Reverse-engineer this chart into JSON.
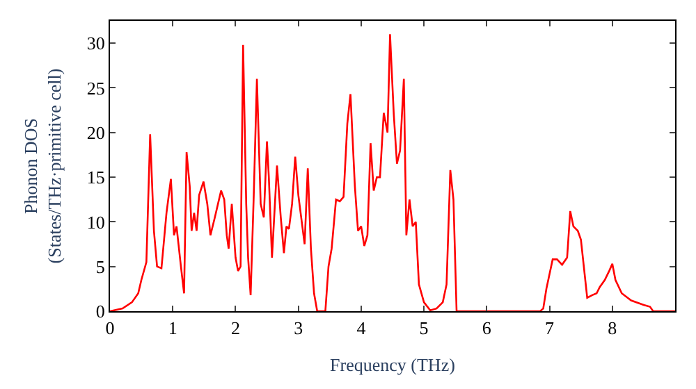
{
  "chart_data": {
    "type": "line",
    "xlabel": "Frequency (THz)",
    "ylabel": "Phonon DOS\n(States/THz·primitive cell)",
    "x": [
      0,
      0.2,
      0.35,
      0.45,
      0.5,
      0.58,
      0.64,
      0.7,
      0.75,
      0.82,
      0.9,
      0.97,
      1.02,
      1.06,
      1.13,
      1.18,
      1.22,
      1.27,
      1.3,
      1.34,
      1.38,
      1.42,
      1.49,
      1.55,
      1.6,
      1.67,
      1.72,
      1.77,
      1.82,
      1.86,
      1.89,
      1.94,
      2.0,
      2.04,
      2.08,
      2.12,
      2.17,
      2.2,
      2.24,
      2.29,
      2.34,
      2.4,
      2.45,
      2.5,
      2.53,
      2.58,
      2.66,
      2.72,
      2.77,
      2.81,
      2.85,
      2.9,
      2.95,
      3.0,
      3.1,
      3.15,
      3.2,
      3.25,
      3.3,
      3.43,
      3.48,
      3.53,
      3.6,
      3.66,
      3.72,
      3.78,
      3.83,
      3.9,
      3.95,
      4.0,
      4.05,
      4.1,
      4.15,
      4.2,
      4.25,
      4.3,
      4.36,
      4.42,
      4.46,
      4.52,
      4.57,
      4.62,
      4.68,
      4.72,
      4.77,
      4.82,
      4.87,
      4.92,
      5.0,
      5.1,
      5.2,
      5.3,
      5.36,
      5.42,
      5.47,
      5.52,
      6.0,
      6.85,
      6.9,
      6.95,
      7.05,
      7.12,
      7.2,
      7.28,
      7.33,
      7.38,
      7.45,
      7.5,
      7.6,
      7.68,
      7.75,
      7.8,
      7.88,
      7.95,
      8.0,
      8.05,
      8.15,
      8.3,
      8.5,
      8.6,
      8.65,
      9.0
    ],
    "series": [
      {
        "color": "#ff0000",
        "values": [
          0,
          0.3,
          1,
          2,
          3.5,
          5.5,
          19.8,
          9,
          5,
          4.8,
          11,
          14.8,
          8.5,
          9.5,
          5,
          2,
          17.8,
          14,
          9,
          11,
          9,
          13,
          14.5,
          12,
          8.5,
          10.5,
          12,
          13.5,
          12.5,
          8.5,
          7,
          12,
          6,
          4.5,
          5,
          29.8,
          12,
          6,
          1.8,
          13,
          26,
          12,
          10.5,
          19,
          15,
          6,
          16.3,
          10.5,
          6.5,
          9.5,
          9.2,
          12,
          17.3,
          13,
          7.5,
          16,
          7,
          2,
          0,
          0,
          5,
          7,
          12.5,
          12.3,
          12.8,
          21,
          24.3,
          14,
          9,
          9.5,
          7.3,
          8.5,
          18.8,
          13.5,
          15,
          15,
          22.2,
          20,
          31,
          22,
          16.5,
          18,
          26,
          8.5,
          12.5,
          9.5,
          10,
          3,
          1,
          0.1,
          0.3,
          1,
          3,
          15.8,
          12.5,
          0,
          0,
          0,
          0.3,
          2.5,
          5.8,
          5.8,
          5.2,
          6,
          11.2,
          9.5,
          9,
          8,
          1.5,
          1.8,
          2,
          2.7,
          3.5,
          4.5,
          5.3,
          3.5,
          2,
          1.2,
          0.7,
          0.5,
          0,
          0
        ]
      }
    ],
    "xlim": [
      0,
      9
    ],
    "ylim": [
      0,
      32.5
    ],
    "xticks": [
      0,
      1,
      2,
      3,
      4,
      5,
      6,
      7,
      8
    ],
    "yticks": [
      0,
      5,
      10,
      15,
      20,
      25,
      30
    ],
    "grid": false,
    "legend": false,
    "marker": "none",
    "line_style": "solid"
  }
}
